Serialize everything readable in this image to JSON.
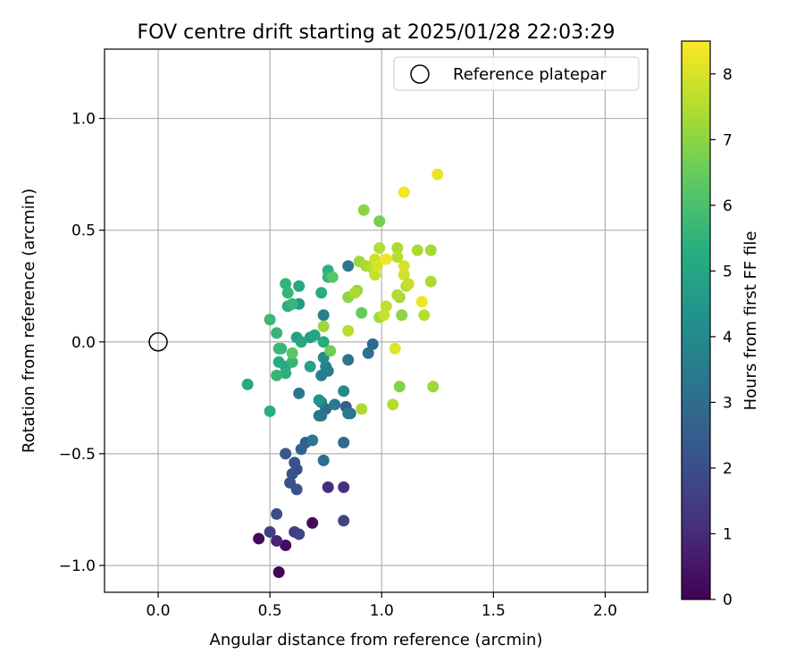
{
  "chart_data": {
    "type": "scatter",
    "title": "FOV centre drift starting at 2025/01/28 22:03:29",
    "xlabel": "Angular distance from reference (arcmin)",
    "ylabel": "Rotation from reference (arcmin)",
    "xlim": [
      -0.24,
      2.19
    ],
    "ylim": [
      -1.12,
      1.31
    ],
    "xticks": [
      0.0,
      0.5,
      1.0,
      1.5,
      2.0
    ],
    "xtick_labels": [
      "0.0",
      "0.5",
      "1.0",
      "1.5",
      "2.0"
    ],
    "yticks": [
      -1.0,
      -0.5,
      0.0,
      0.5,
      1.0
    ],
    "ytick_labels": [
      "−1.0",
      "−0.5",
      "0.0",
      "0.5",
      "1.0"
    ],
    "grid": true,
    "legend": {
      "position": "top-right",
      "entries": [
        "Reference platepar"
      ]
    },
    "reference_point": {
      "x": 0.0,
      "y": 0.0
    },
    "colorbar": {
      "label": "Hours from first FF file",
      "range": [
        0,
        8.5
      ],
      "ticks": [
        0,
        1,
        2,
        3,
        4,
        5,
        6,
        7,
        8
      ],
      "tick_labels": [
        "0",
        "1",
        "2",
        "3",
        "4",
        "5",
        "6",
        "7",
        "8"
      ],
      "colormap": "viridis"
    },
    "points": [
      {
        "x": 0.54,
        "y": -1.03,
        "h": 0.1
      },
      {
        "x": 0.45,
        "y": -0.88,
        "h": 0.2
      },
      {
        "x": 0.57,
        "y": -0.91,
        "h": 0.3
      },
      {
        "x": 0.69,
        "y": -0.81,
        "h": 0.2
      },
      {
        "x": 0.53,
        "y": -0.89,
        "h": 0.9
      },
      {
        "x": 0.5,
        "y": -0.85,
        "h": 1.6
      },
      {
        "x": 0.61,
        "y": -0.85,
        "h": 1.5
      },
      {
        "x": 0.63,
        "y": -0.86,
        "h": 1.7
      },
      {
        "x": 0.53,
        "y": -0.77,
        "h": 2.0
      },
      {
        "x": 0.76,
        "y": -0.65,
        "h": 1.1
      },
      {
        "x": 0.83,
        "y": -0.65,
        "h": 1.2
      },
      {
        "x": 0.83,
        "y": -0.8,
        "h": 1.7
      },
      {
        "x": 0.59,
        "y": -0.63,
        "h": 2.1
      },
      {
        "x": 0.62,
        "y": -0.66,
        "h": 2.2
      },
      {
        "x": 0.6,
        "y": -0.59,
        "h": 2.2
      },
      {
        "x": 0.62,
        "y": -0.57,
        "h": 2.0
      },
      {
        "x": 0.61,
        "y": -0.54,
        "h": 2.1
      },
      {
        "x": 0.57,
        "y": -0.5,
        "h": 2.3
      },
      {
        "x": 0.64,
        "y": -0.48,
        "h": 2.7
      },
      {
        "x": 0.66,
        "y": -0.45,
        "h": 2.5
      },
      {
        "x": 0.69,
        "y": -0.44,
        "h": 3.3
      },
      {
        "x": 0.74,
        "y": -0.53,
        "h": 3.1
      },
      {
        "x": 0.83,
        "y": -0.45,
        "h": 2.9
      },
      {
        "x": 0.72,
        "y": -0.33,
        "h": 3.2
      },
      {
        "x": 0.75,
        "y": -0.3,
        "h": 3.0
      },
      {
        "x": 0.73,
        "y": -0.27,
        "h": 3.5
      },
      {
        "x": 0.79,
        "y": -0.28,
        "h": 3.5
      },
      {
        "x": 0.73,
        "y": -0.33,
        "h": 3.3
      },
      {
        "x": 0.84,
        "y": -0.29,
        "h": 2.6
      },
      {
        "x": 0.86,
        "y": -0.32,
        "h": 3.1
      },
      {
        "x": 0.85,
        "y": -0.32,
        "h": 3.4
      },
      {
        "x": 0.83,
        "y": -0.22,
        "h": 4.0
      },
      {
        "x": 0.63,
        "y": -0.23,
        "h": 3.4
      },
      {
        "x": 0.72,
        "y": -0.26,
        "h": 4.4
      },
      {
        "x": 0.73,
        "y": -0.15,
        "h": 3.6
      },
      {
        "x": 0.75,
        "y": -0.11,
        "h": 3.7
      },
      {
        "x": 0.76,
        "y": -0.13,
        "h": 3.4
      },
      {
        "x": 0.74,
        "y": -0.07,
        "h": 4.1
      },
      {
        "x": 0.68,
        "y": -0.11,
        "h": 4.8
      },
      {
        "x": 0.85,
        "y": -0.08,
        "h": 3.3
      },
      {
        "x": 0.94,
        "y": -0.05,
        "h": 3.1
      },
      {
        "x": 0.96,
        "y": -0.01,
        "h": 2.9
      },
      {
        "x": 0.4,
        "y": -0.19,
        "h": 5.1
      },
      {
        "x": 0.5,
        "y": -0.31,
        "h": 5.3
      },
      {
        "x": 0.53,
        "y": -0.15,
        "h": 5.6
      },
      {
        "x": 0.57,
        "y": -0.14,
        "h": 5.4
      },
      {
        "x": 0.57,
        "y": -0.11,
        "h": 5.0
      },
      {
        "x": 0.54,
        "y": -0.09,
        "h": 5.2
      },
      {
        "x": 0.6,
        "y": -0.09,
        "h": 5.6
      },
      {
        "x": 0.6,
        "y": -0.05,
        "h": 6.3
      },
      {
        "x": 0.54,
        "y": -0.03,
        "h": 5.7
      },
      {
        "x": 0.55,
        "y": -0.03,
        "h": 5.5
      },
      {
        "x": 0.53,
        "y": 0.04,
        "h": 5.6
      },
      {
        "x": 0.62,
        "y": 0.02,
        "h": 4.8
      },
      {
        "x": 0.64,
        "y": 0.0,
        "h": 5.1
      },
      {
        "x": 0.68,
        "y": 0.02,
        "h": 4.7
      },
      {
        "x": 0.7,
        "y": 0.03,
        "h": 5.0
      },
      {
        "x": 0.74,
        "y": 0.0,
        "h": 5.2
      },
      {
        "x": 0.77,
        "y": -0.04,
        "h": 6.6
      },
      {
        "x": 0.74,
        "y": 0.12,
        "h": 3.6
      },
      {
        "x": 0.74,
        "y": 0.07,
        "h": 7.2
      },
      {
        "x": 0.85,
        "y": 0.05,
        "h": 7.6
      },
      {
        "x": 0.5,
        "y": 0.1,
        "h": 5.7
      },
      {
        "x": 0.58,
        "y": 0.16,
        "h": 5.3
      },
      {
        "x": 0.6,
        "y": 0.17,
        "h": 5.6
      },
      {
        "x": 0.63,
        "y": 0.17,
        "h": 4.5
      },
      {
        "x": 0.58,
        "y": 0.22,
        "h": 5.6
      },
      {
        "x": 0.57,
        "y": 0.26,
        "h": 5.5
      },
      {
        "x": 0.63,
        "y": 0.25,
        "h": 5.1
      },
      {
        "x": 0.73,
        "y": 0.22,
        "h": 5.3
      },
      {
        "x": 0.76,
        "y": 0.29,
        "h": 5.6
      },
      {
        "x": 0.76,
        "y": 0.32,
        "h": 5.4
      },
      {
        "x": 0.78,
        "y": 0.29,
        "h": 6.2
      },
      {
        "x": 0.85,
        "y": 0.34,
        "h": 3.4
      },
      {
        "x": 0.85,
        "y": 0.2,
        "h": 7.0
      },
      {
        "x": 0.88,
        "y": 0.22,
        "h": 7.4
      },
      {
        "x": 0.89,
        "y": 0.23,
        "h": 7.1
      },
      {
        "x": 0.91,
        "y": 0.13,
        "h": 6.5
      },
      {
        "x": 0.9,
        "y": 0.36,
        "h": 7.2
      },
      {
        "x": 0.93,
        "y": 0.34,
        "h": 7.4
      },
      {
        "x": 0.96,
        "y": 0.33,
        "h": 7.6
      },
      {
        "x": 0.97,
        "y": 0.37,
        "h": 7.9
      },
      {
        "x": 0.98,
        "y": 0.34,
        "h": 8.0
      },
      {
        "x": 0.97,
        "y": 0.3,
        "h": 7.8
      },
      {
        "x": 0.99,
        "y": 0.42,
        "h": 7.5
      },
      {
        "x": 1.02,
        "y": 0.37,
        "h": 8.3
      },
      {
        "x": 1.07,
        "y": 0.38,
        "h": 7.6
      },
      {
        "x": 1.07,
        "y": 0.42,
        "h": 7.4
      },
      {
        "x": 1.1,
        "y": 0.34,
        "h": 8.0
      },
      {
        "x": 1.1,
        "y": 0.3,
        "h": 7.9
      },
      {
        "x": 1.11,
        "y": 0.25,
        "h": 7.6
      },
      {
        "x": 1.12,
        "y": 0.26,
        "h": 7.8
      },
      {
        "x": 1.02,
        "y": 0.16,
        "h": 7.7
      },
      {
        "x": 1.01,
        "y": 0.12,
        "h": 7.8
      },
      {
        "x": 0.99,
        "y": 0.11,
        "h": 7.3
      },
      {
        "x": 1.07,
        "y": 0.21,
        "h": 7.5
      },
      {
        "x": 1.08,
        "y": 0.2,
        "h": 7.2
      },
      {
        "x": 1.09,
        "y": 0.12,
        "h": 7.0
      },
      {
        "x": 1.18,
        "y": 0.18,
        "h": 8.3
      },
      {
        "x": 1.19,
        "y": 0.12,
        "h": 7.6
      },
      {
        "x": 1.16,
        "y": 0.41,
        "h": 7.4
      },
      {
        "x": 1.22,
        "y": 0.41,
        "h": 7.3
      },
      {
        "x": 1.22,
        "y": 0.27,
        "h": 7.4
      },
      {
        "x": 0.92,
        "y": 0.59,
        "h": 7.0
      },
      {
        "x": 0.99,
        "y": 0.54,
        "h": 6.7
      },
      {
        "x": 1.1,
        "y": 0.67,
        "h": 8.4
      },
      {
        "x": 1.25,
        "y": 0.75,
        "h": 8.2
      },
      {
        "x": 1.06,
        "y": -0.03,
        "h": 8.1
      },
      {
        "x": 0.91,
        "y": -0.3,
        "h": 7.4
      },
      {
        "x": 1.05,
        "y": -0.28,
        "h": 7.5
      },
      {
        "x": 1.08,
        "y": -0.2,
        "h": 6.9
      },
      {
        "x": 1.23,
        "y": -0.2,
        "h": 7.2
      }
    ]
  }
}
